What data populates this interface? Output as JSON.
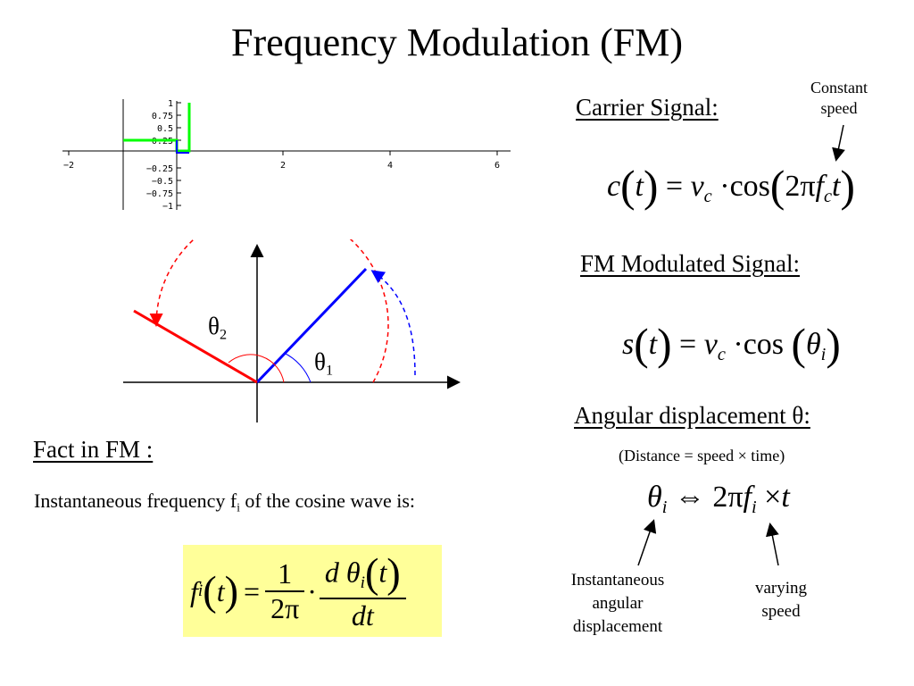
{
  "title": "Frequency Modulation (FM)",
  "carrier": {
    "heading": "Carrier Signal:",
    "annotation_line1": "Constant",
    "annotation_line2": "speed",
    "equation": {
      "c": "c",
      "t": "t",
      "eq": "=",
      "v": "v",
      "sub_c": "c",
      "dot": "·",
      "cos": "cos",
      "two_pi": "2π",
      "f": "f",
      "sub_fc": "c",
      "t2": "t"
    }
  },
  "fm_signal": {
    "heading": "FM Modulated Signal:",
    "equation": {
      "s": "s",
      "t": "t",
      "eq": "=",
      "v": "v",
      "sub_c": "c",
      "dot": "·",
      "cos": "cos",
      "theta": "θ",
      "sub_i": "i"
    }
  },
  "angular": {
    "heading": "Angular displacement θ:",
    "note": "(Distance = speed × time)",
    "equation": {
      "theta": "θ",
      "sub_i": "i",
      "iff": "⇔",
      "two_pi": "2π",
      "f": "f",
      "sub_fi": "i",
      "times": "×",
      "t": "t"
    },
    "label_left_1": "Instantaneous",
    "label_left_2": "angular",
    "label_left_3": "displacement",
    "label_right_1": "varying",
    "label_right_2": "speed"
  },
  "fact": {
    "heading": "Fact in FM :",
    "text_pre": "Instantaneous frequency f",
    "text_sub": "i",
    "text_post": " of the cosine wave is:",
    "formula": {
      "f": "f",
      "sub_i": "i",
      "t": "t",
      "eq": "=",
      "num1": "1",
      "den1": "2π",
      "dot": "·",
      "d": "d",
      "theta": "θ",
      "sub_ti": "i",
      "t2": "t",
      "dt": "dt"
    },
    "highlight_color": "#ffff99"
  },
  "phasor": {
    "theta1": "θ",
    "sub1": "1",
    "theta2": "θ",
    "sub2": "2",
    "colors": {
      "red": "#ff0000",
      "blue": "#0000ff",
      "green": "#00ff00"
    }
  },
  "plot": {
    "x_ticks": [
      "−2",
      "2",
      "4",
      "6"
    ],
    "y_ticks": [
      "1",
      "0.75",
      "0.5",
      "0.25",
      "−0.25",
      "−0.5",
      "−0.75",
      "−1"
    ]
  }
}
